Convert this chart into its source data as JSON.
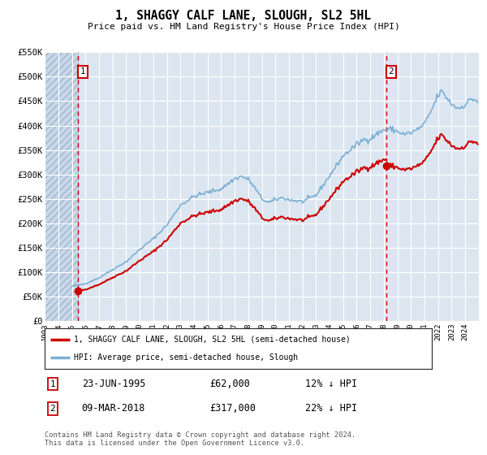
{
  "title": "1, SHAGGY CALF LANE, SLOUGH, SL2 5HL",
  "subtitle": "Price paid vs. HM Land Registry's House Price Index (HPI)",
  "ylim": [
    0,
    550000
  ],
  "yticks": [
    0,
    50000,
    100000,
    150000,
    200000,
    250000,
    300000,
    350000,
    400000,
    450000,
    500000,
    550000
  ],
  "ytick_labels": [
    "£0",
    "£50K",
    "£100K",
    "£150K",
    "£200K",
    "£250K",
    "£300K",
    "£350K",
    "£400K",
    "£450K",
    "£500K",
    "£550K"
  ],
  "xlim_start": 1993.0,
  "xlim_end": 2025.0,
  "xticks": [
    1993,
    1994,
    1995,
    1996,
    1997,
    1998,
    1999,
    2000,
    2001,
    2002,
    2003,
    2004,
    2005,
    2006,
    2007,
    2008,
    2009,
    2010,
    2011,
    2012,
    2013,
    2014,
    2015,
    2016,
    2017,
    2018,
    2019,
    2020,
    2021,
    2022,
    2023,
    2024
  ],
  "plot_bg_color": "#dce6f1",
  "red_line_color": "#cc0000",
  "blue_line_color": "#7bafd4",
  "sale1_date_num": 1995.47,
  "sale1_price": 62000,
  "sale1_date_str": "23-JUN-1995",
  "sale1_price_str": "£62,000",
  "sale1_hpi_str": "12% ↓ HPI",
  "sale2_date_num": 2018.18,
  "sale2_price": 317000,
  "sale2_date_str": "09-MAR-2018",
  "sale2_price_str": "£317,000",
  "sale2_hpi_str": "22% ↓ HPI",
  "legend_label1": "1, SHAGGY CALF LANE, SLOUGH, SL2 5HL (semi-detached house)",
  "legend_label2": "HPI: Average price, semi-detached house, Slough",
  "footer": "Contains HM Land Registry data © Crown copyright and database right 2024.\nThis data is licensed under the Open Government Licence v3.0."
}
